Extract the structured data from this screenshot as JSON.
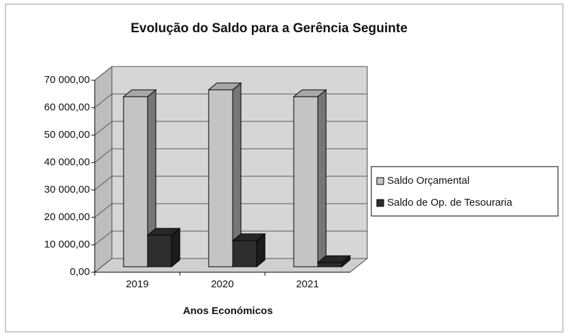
{
  "chart_data": {
    "type": "bar3d",
    "title": "Evolução do Saldo para a Gerência Seguinte",
    "x_label": "Anos Económicos",
    "categories": [
      "2019",
      "2020",
      "2021"
    ],
    "series": [
      {
        "name": "Saldo Orçamental",
        "color": "#c4c4c4",
        "values": [
          66000,
          68500,
          66000
        ]
      },
      {
        "name": "Saldo de Op. de Tesouraria",
        "color": "#2e2e2e",
        "values": [
          15500,
          13500,
          5500
        ]
      }
    ],
    "ylim": [
      0,
      70000
    ],
    "yticks": [
      {
        "value": 0,
        "label": "0,00"
      },
      {
        "value": 10000,
        "label": "10 000,00"
      },
      {
        "value": 20000,
        "label": "20 000,00"
      },
      {
        "value": 30000,
        "label": "30 000,00"
      },
      {
        "value": 40000,
        "label": "40 000,00"
      },
      {
        "value": 50000,
        "label": "50 000,00"
      },
      {
        "value": 60000,
        "label": "60 000,00"
      },
      {
        "value": 70000,
        "label": "70 000,00"
      }
    ],
    "grid": true,
    "legend": "right"
  }
}
